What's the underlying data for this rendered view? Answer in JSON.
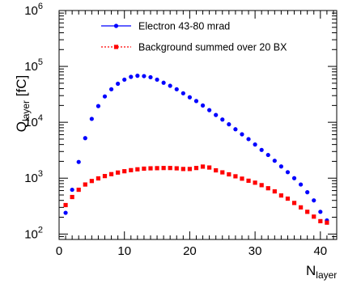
{
  "chart_data": {
    "type": "scatter",
    "ylog": true,
    "xlim": [
      0,
      42.5
    ],
    "ylim": [
      80,
      1000000
    ],
    "x_ticks": [
      "0",
      "10",
      "20",
      "30",
      "40"
    ],
    "y_ticks": [
      {
        "base": "10",
        "exp": "2"
      },
      {
        "base": "10",
        "exp": "3"
      },
      {
        "base": "10",
        "exp": "4"
      },
      {
        "base": "10",
        "exp": "5"
      },
      {
        "base": "10",
        "exp": "6"
      }
    ],
    "ylabel": {
      "main": "Q",
      "sub": "layer",
      "unit": " [fC]"
    },
    "xlabel": {
      "main": "N",
      "sub": "layer"
    },
    "legend_position": "top-left",
    "series": [
      {
        "name": "Electron 43-80 mrad",
        "color": "#0000ff",
        "marker": "circle",
        "line": "solid",
        "x": [
          1,
          2,
          3,
          4,
          5,
          6,
          7,
          8,
          9,
          10,
          11,
          12,
          13,
          14,
          15,
          16,
          17,
          18,
          19,
          20,
          21,
          22,
          23,
          24,
          25,
          26,
          27,
          28,
          29,
          30,
          31,
          32,
          33,
          34,
          35,
          36,
          37,
          38,
          39,
          40,
          41
        ],
        "y": [
          240,
          620,
          1950,
          5200,
          11500,
          19500,
          29000,
          39000,
          49000,
          58000,
          65000,
          68000,
          67000,
          64000,
          58000,
          51000,
          45000,
          39000,
          33000,
          28000,
          24000,
          20000,
          16500,
          13500,
          11200,
          9200,
          7500,
          6100,
          5000,
          4000,
          3200,
          2600,
          2050,
          1620,
          1280,
          1000,
          770,
          560,
          400,
          250,
          175
        ]
      },
      {
        "name": "Background summed over 20 BX",
        "color": "#ff0000",
        "marker": "square",
        "line": "dotted",
        "x": [
          1,
          2,
          3,
          4,
          5,
          6,
          7,
          8,
          9,
          10,
          11,
          12,
          13,
          14,
          15,
          16,
          17,
          18,
          19,
          20,
          21,
          22,
          23,
          24,
          25,
          26,
          27,
          28,
          29,
          30,
          31,
          32,
          33,
          34,
          35,
          36,
          37,
          38,
          39,
          40,
          41
        ],
        "y": [
          330,
          460,
          620,
          770,
          890,
          990,
          1090,
          1180,
          1260,
          1330,
          1390,
          1440,
          1480,
          1500,
          1510,
          1520,
          1520,
          1500,
          1460,
          1460,
          1520,
          1610,
          1550,
          1380,
          1270,
          1170,
          1080,
          980,
          900,
          830,
          750,
          660,
          580,
          490,
          430,
          360,
          300,
          250,
          205,
          170,
          160
        ]
      }
    ]
  }
}
